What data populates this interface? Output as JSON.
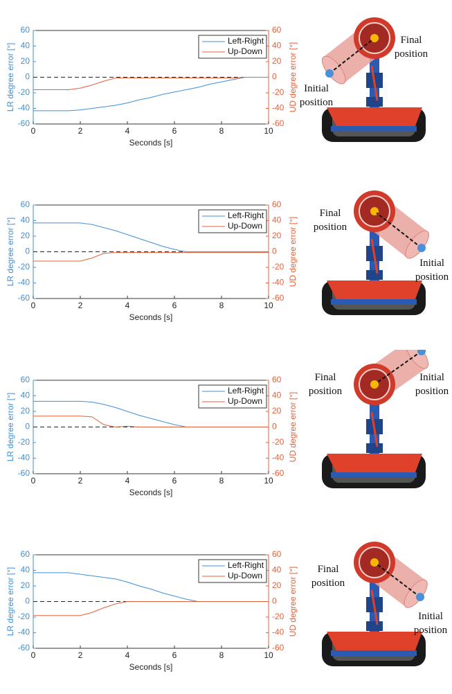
{
  "chart_data": [
    {
      "type": "line",
      "x": [
        0,
        0.5,
        1,
        1.5,
        2,
        2.5,
        3,
        3.5,
        4,
        4.5,
        5,
        5.5,
        6,
        6.5,
        7,
        7.5,
        8,
        8.5,
        9,
        9.5,
        10
      ],
      "xlim": [
        0,
        10
      ],
      "xticks": [
        0,
        2,
        4,
        6,
        8,
        10
      ],
      "ylim": [
        -60,
        60
      ],
      "yticks": [
        60,
        40,
        20,
        0,
        -20,
        -40,
        -60
      ],
      "y2lim": [
        -60,
        60
      ],
      "y2ticks": [
        60,
        40,
        20,
        0,
        -20,
        -40,
        -60
      ],
      "xlabel": "Seconds [s]",
      "ylabel": "LR degree error [°]",
      "y2label": "UD degree error [°]",
      "hline": 0,
      "legend": "upper right",
      "series": [
        {
          "name": "Left-Right",
          "color": "#3d8fd6",
          "values": [
            -43,
            -43,
            -43,
            -43,
            -42,
            -40,
            -38,
            -36,
            -33,
            -29,
            -26,
            -22,
            -19,
            -16,
            -13,
            -9,
            -6,
            -3,
            0,
            0,
            0
          ]
        },
        {
          "name": "Up-Down",
          "color": "#e5603a",
          "axis": "y2",
          "values": [
            -16,
            -16,
            -16,
            -16,
            -14,
            -10,
            -5,
            -1,
            -1,
            -1,
            -1,
            -1,
            -1,
            -1,
            -1,
            -1,
            -1,
            -1,
            0,
            0,
            0
          ]
        }
      ],
      "annotations": [
        "Final position",
        "Initial position"
      ]
    },
    {
      "type": "line",
      "x": [
        0,
        0.5,
        1,
        1.5,
        2,
        2.5,
        3,
        3.5,
        4,
        4.5,
        5,
        5.5,
        6,
        6.5,
        7,
        7.5,
        8,
        8.5,
        9,
        9.5,
        10
      ],
      "xlim": [
        0,
        10
      ],
      "xticks": [
        0,
        2,
        4,
        6,
        8,
        10
      ],
      "ylim": [
        -60,
        60
      ],
      "yticks": [
        60,
        40,
        20,
        0,
        -20,
        -40,
        -60
      ],
      "y2lim": [
        -60,
        60
      ],
      "y2ticks": [
        60,
        40,
        20,
        0,
        -20,
        -40,
        -60
      ],
      "xlabel": "Seconds [s]",
      "ylabel": "LR degree error [°]",
      "y2label": "UD degree error [°]",
      "hline": 0,
      "legend": "upper right",
      "series": [
        {
          "name": "Left-Right",
          "color": "#3d8fd6",
          "values": [
            37,
            37,
            37,
            37,
            37,
            35,
            31,
            27,
            22,
            17,
            12,
            7,
            3,
            0,
            0,
            0,
            0,
            0,
            0,
            0,
            0
          ]
        },
        {
          "name": "Up-Down",
          "color": "#e5603a",
          "axis": "y2",
          "values": [
            -12,
            -12,
            -12,
            -12,
            -12,
            -8,
            -2,
            -1,
            -1,
            -1,
            -1,
            -1,
            -1,
            -1,
            -1,
            -1,
            -1,
            -1,
            -1,
            -1,
            -1
          ]
        }
      ],
      "annotations": [
        "Final position",
        "Initial position"
      ]
    },
    {
      "type": "line",
      "x": [
        0,
        0.5,
        1,
        1.5,
        2,
        2.5,
        3,
        3.5,
        4,
        4.5,
        5,
        5.5,
        6,
        6.5,
        7,
        7.5,
        8,
        8.5,
        9,
        9.5,
        10
      ],
      "xlim": [
        0,
        10
      ],
      "xticks": [
        0,
        2,
        4,
        6,
        8,
        10
      ],
      "ylim": [
        -60,
        60
      ],
      "yticks": [
        60,
        40,
        20,
        0,
        -20,
        -40,
        -60
      ],
      "y2lim": [
        -60,
        60
      ],
      "y2ticks": [
        60,
        40,
        20,
        0,
        -20,
        -40,
        -60
      ],
      "xlabel": "Seconds [s]",
      "ylabel": "LR degree error [°]",
      "y2label": "UD degree error [°]",
      "hline": 0,
      "legend": "upper right",
      "series": [
        {
          "name": "Left-Right",
          "color": "#3d8fd6",
          "values": [
            33,
            33,
            33,
            33,
            33,
            32,
            29,
            25,
            20,
            15,
            11,
            7,
            3,
            0,
            0,
            0,
            0,
            0,
            0,
            0,
            0
          ]
        },
        {
          "name": "Up-Down",
          "color": "#e5603a",
          "axis": "y2",
          "values": [
            14,
            14,
            14,
            14,
            14,
            13,
            3,
            0,
            1,
            0,
            0,
            0,
            0,
            0,
            0,
            0,
            0,
            0,
            0,
            0,
            0
          ]
        }
      ],
      "annotations": [
        "Final position",
        "Initial position"
      ]
    },
    {
      "type": "line",
      "x": [
        0,
        0.5,
        1,
        1.5,
        2,
        2.5,
        3,
        3.5,
        4,
        4.5,
        5,
        5.5,
        6,
        6.5,
        7,
        7.5,
        8,
        8.5,
        9,
        9.5,
        10
      ],
      "xlim": [
        0,
        10
      ],
      "xticks": [
        0,
        2,
        4,
        6,
        8,
        10
      ],
      "ylim": [
        -60,
        60
      ],
      "yticks": [
        60,
        40,
        20,
        0,
        -20,
        -40,
        -60
      ],
      "y2lim": [
        -60,
        60
      ],
      "y2ticks": [
        60,
        40,
        20,
        0,
        -20,
        -40,
        -60
      ],
      "xlabel": "Seconds [s]",
      "ylabel": "LR degree error [°]",
      "y2label": "UD degree error [°]",
      "hline": 0,
      "legend": "upper right",
      "series": [
        {
          "name": "Left-Right",
          "color": "#3d8fd6",
          "values": [
            37,
            37,
            37,
            37,
            35,
            33,
            31,
            29,
            25,
            20,
            16,
            11,
            7,
            3,
            0,
            0,
            0,
            0,
            0,
            0,
            0
          ]
        },
        {
          "name": "Up-Down",
          "color": "#e5603a",
          "axis": "y2",
          "values": [
            -18,
            -18,
            -18,
            -18,
            -18,
            -14,
            -8,
            -3,
            0,
            0,
            0,
            0,
            0,
            0,
            0,
            0,
            0,
            0,
            0,
            0,
            0
          ]
        }
      ],
      "annotations": [
        "Final position",
        "Initial position"
      ]
    }
  ]
}
